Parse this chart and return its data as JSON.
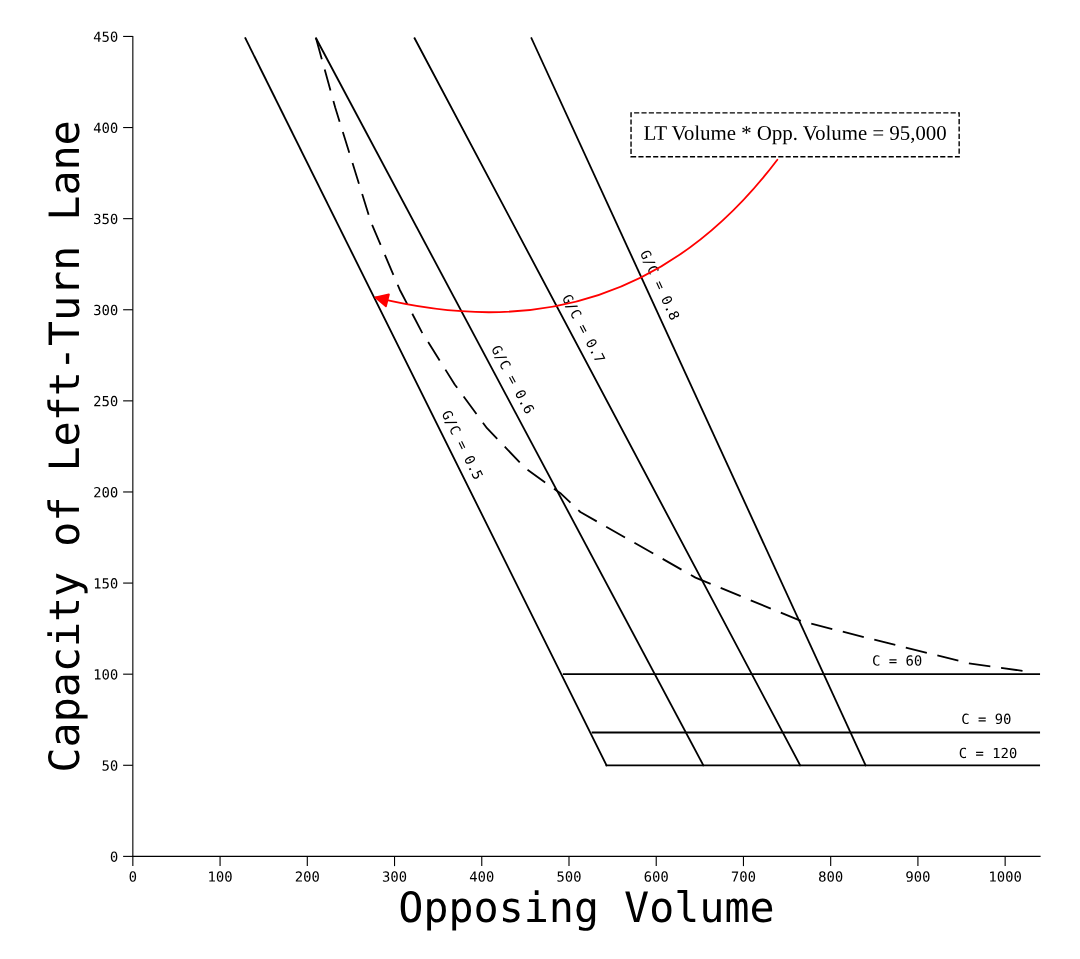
{
  "chart_data": {
    "type": "line",
    "xlabel": "Opposing Volume",
    "ylabel": "Capacity of Left-Turn Lane",
    "xlim": [
      0,
      1040
    ],
    "ylim": [
      0,
      450
    ],
    "xticks": [
      0,
      100,
      200,
      300,
      400,
      500,
      600,
      700,
      800,
      900,
      1000
    ],
    "yticks": [
      0,
      50,
      100,
      150,
      200,
      250,
      300,
      350,
      400,
      450
    ],
    "grid": false,
    "legend": false,
    "marker": "none",
    "series": [
      {
        "name": "G/C = 0.5",
        "color": "#000000",
        "x": [
          129,
          543
        ],
        "values": [
          449,
          50
        ]
      },
      {
        "name": "G/C = 0.6",
        "color": "#000000",
        "x": [
          210,
          654
        ],
        "values": [
          449,
          50
        ]
      },
      {
        "name": "G/C = 0.7",
        "color": "#000000",
        "x": [
          323,
          765
        ],
        "values": [
          449,
          50
        ]
      },
      {
        "name": "G/C = 0.8",
        "color": "#000000",
        "x": [
          457,
          840
        ],
        "values": [
          449,
          50
        ]
      },
      {
        "name": "C = 60",
        "color": "#000000",
        "x": [
          494,
          1040
        ],
        "values": [
          100,
          100
        ]
      },
      {
        "name": "C = 90",
        "color": "#000000",
        "x": [
          527,
          1040
        ],
        "values": [
          68,
          68
        ]
      },
      {
        "name": "C = 120",
        "color": "#000000",
        "x": [
          543,
          1040
        ],
        "values": [
          50,
          50
        ]
      },
      {
        "color": "#000000",
        "line_style": "dashed",
        "x": [
          210,
          232,
          273,
          306,
          331,
          369,
          406,
          450,
          491,
          513,
          645,
          767,
          866,
          958,
          1032
        ],
        "values": [
          449,
          411,
          348,
          311,
          288,
          259,
          235,
          213,
          199,
          189,
          153,
          129,
          117,
          106,
          101
        ]
      }
    ],
    "annotations": [
      {
        "text": "LT Volume * Opp. Volume = 95,000",
        "x": 276,
        "y": 307
      }
    ]
  }
}
